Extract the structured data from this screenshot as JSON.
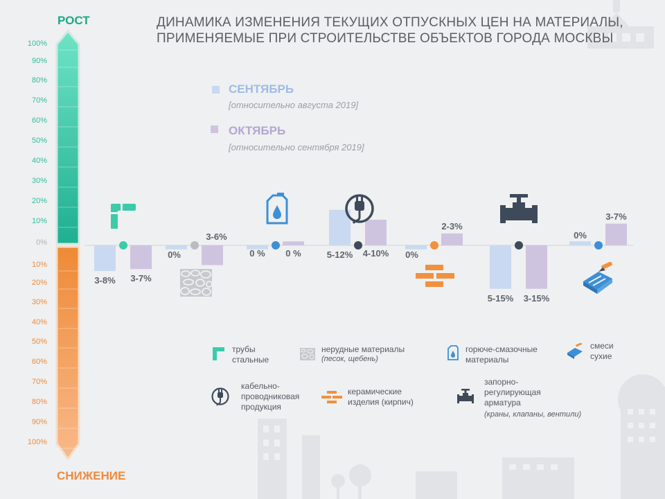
{
  "title": {
    "line1": "ДИНАМИКА ИЗМЕНЕНИЯ ТЕКУЩИХ ОТПУСКНЫХ ЦЕН НА МАТЕРИАЛЫ,",
    "line2": "ПРИМЕНЯЕМЫЕ ПРИ СТРОИТЕЛЬСТВЕ ОБЪЕКТОВ ГОРОДА МОСКВЫ"
  },
  "scale": {
    "top_label": "РОСТ",
    "bottom_label": "СНИЖЕНИЕ",
    "up_ticks": [
      "100%",
      "90%",
      "80%",
      "70%",
      "60%",
      "50%",
      "40%",
      "30%",
      "20%",
      "10%"
    ],
    "zero": "0%",
    "down_ticks": [
      "10%",
      "20%",
      "30%",
      "40%",
      "50%",
      "60%",
      "70%",
      "80%",
      "90%",
      "100%"
    ]
  },
  "legend": {
    "sep_label": "СЕНТЯБРЬ",
    "sep_rel": "[относительно августа 2019]",
    "oct_label": "ОКТЯБРЬ",
    "oct_rel": "[относительно сентября 2019]"
  },
  "colors": {
    "september": "#c9d9f1",
    "october": "#cfc4e0",
    "growth_top": "#6fe3c6",
    "growth_bottom": "#1faf91",
    "decline_top": "#ee8a36",
    "decline_bottom": "#f9b98a",
    "axis": "#dfe1e4",
    "teal": "#3ccbaa",
    "orange": "#f0913f",
    "blue": "#3d8fd6",
    "dark": "#3e4a5a",
    "grey": "#b9bcc1"
  },
  "chart_data": {
    "type": "bar",
    "title": "ДИНАМИКА ИЗМЕНЕНИЯ ТЕКУЩИХ ОТПУСКНЫХ ЦЕН НА МАТЕРИАЛЫ, ПРИМЕНЯЕМЫЕ ПРИ СТРОИТЕЛЬСТВЕ ОБЪЕКТОВ ГОРОДА МОСКВЫ",
    "ylim": [
      -100,
      100
    ],
    "categories": [
      "трубы стальные",
      "нерудные материалы (песок, щебень)",
      "горюче-смазочные материалы",
      "кабельно-проводниковая продукция",
      "керамические изделия (кирпич)",
      "запорно-регулирующая арматура (краны, клапаны, вентили)",
      "смеси сухие"
    ],
    "series": [
      {
        "name": "СЕНТЯБРЬ [относительно августа 2019]",
        "values": [
          -13,
          -2,
          -2,
          18,
          -2,
          -22,
          2
        ],
        "labels": [
          "3-8%",
          "0%",
          "0 %",
          "5-12%",
          "0%",
          "5-15%",
          "0%"
        ]
      },
      {
        "name": "ОКТЯБРЬ [относительно сентября 2019]",
        "values": [
          -12,
          -10,
          2,
          13,
          6,
          -22,
          11
        ],
        "labels": [
          "3-7%",
          "3-6%",
          "0 %",
          "4-10%",
          "2-3%",
          "3-15%",
          "3-7%"
        ]
      }
    ]
  },
  "categories_legend": {
    "pipes": "трубы\nстальные",
    "inert": "нерудные материалы",
    "inert_sub": "(песок, щебень)",
    "fuel": "горюче-смазочные\nматериалы",
    "dry": "смеси\nсухие",
    "cable": "кабельно-\nпроводниковая\nпродукция",
    "ceramic": "керамические\nизделия (кирпич)",
    "valves": "запорно-\nрегулирующая\nарматура",
    "valves_sub": "(краны, клапаны, вентили)"
  },
  "icons": {
    "pipes": "steel-pipe-icon",
    "inert": "gravel-icon",
    "fuel": "fuel-canister-icon",
    "cable": "cable-plug-icon",
    "ceramic": "brick-icon",
    "valves": "valve-icon",
    "dry": "trowel-mix-icon"
  }
}
